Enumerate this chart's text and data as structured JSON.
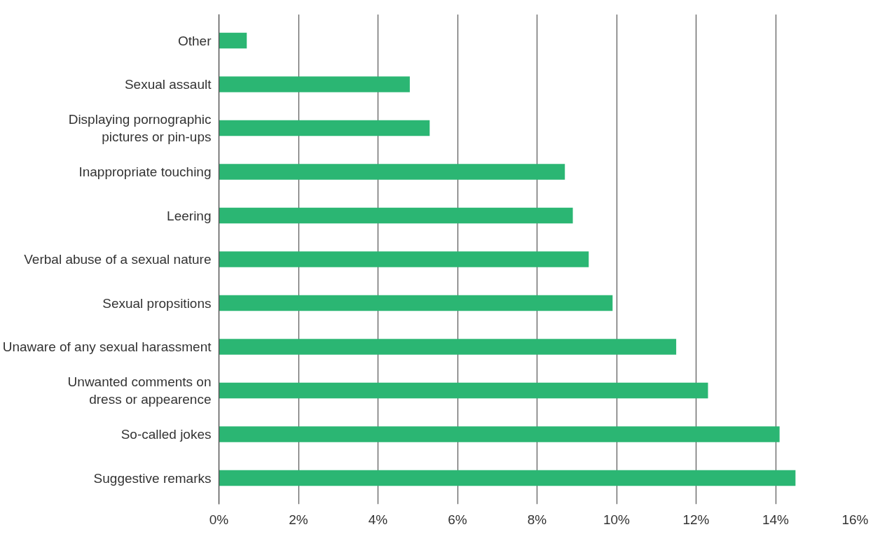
{
  "chart_data": {
    "type": "bar",
    "orientation": "horizontal",
    "categories": [
      "Other",
      "Sexual assault",
      "Displaying pornographic\npictures or pin-ups",
      "Inappropriate touching",
      "Leering",
      "Verbal abuse of a sexual nature",
      "Sexual propsitions",
      "Unaware of any sexual harassment",
      "Unwanted comments on\ndress or appearence",
      "So-called jokes",
      "Suggestive remarks"
    ],
    "values": [
      0.7,
      4.8,
      5.3,
      8.7,
      8.9,
      9.3,
      9.9,
      11.5,
      12.3,
      14.1,
      14.5
    ],
    "color": "#2bb673",
    "xlim": [
      0,
      16
    ],
    "xticks": [
      {
        "value": 0,
        "label": "0%"
      },
      {
        "value": 2,
        "label": "2%"
      },
      {
        "value": 4,
        "label": "4%"
      },
      {
        "value": 6,
        "label": "6%"
      },
      {
        "value": 8,
        "label": "8%"
      },
      {
        "value": 10,
        "label": "10%"
      },
      {
        "value": 12,
        "label": "12%"
      },
      {
        "value": 14,
        "label": "14%"
      },
      {
        "value": 16,
        "label": "16%"
      }
    ],
    "grid": "x"
  }
}
